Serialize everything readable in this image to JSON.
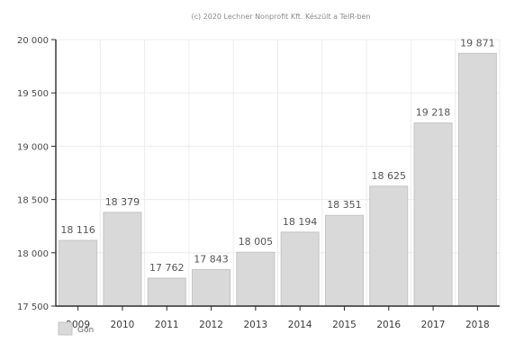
{
  "credit": "(c) 2020 Lechner Nonprofit Kft. Készült a TeIR-ben",
  "chart_data": {
    "type": "bar",
    "categories": [
      "2009",
      "2010",
      "2011",
      "2012",
      "2013",
      "2014",
      "2015",
      "2016",
      "2017",
      "2018"
    ],
    "series": [
      {
        "name": "Gön",
        "values": [
          18116,
          18379,
          17762,
          17843,
          18005,
          18194,
          18351,
          18625,
          19218,
          19871
        ],
        "labels": [
          "18 116",
          "18 379",
          "17 762",
          "17 843",
          "18 005",
          "18 194",
          "18 351",
          "18 625",
          "19 218",
          "19 871"
        ]
      }
    ],
    "ylim": [
      17500,
      20000
    ],
    "yticks": [
      17500,
      18000,
      18500,
      19000,
      19500,
      20000
    ],
    "ytick_labels": [
      "17 500",
      "18 000",
      "18 500",
      "19 000",
      "19 500",
      "20 000"
    ],
    "grid": true,
    "legend": "bottom-left",
    "title": "",
    "xlabel": "",
    "ylabel": "",
    "colors": {
      "bar_fill": "#d9d9d9",
      "bar_stroke": "#c4c4c4",
      "axis": "#2b2b2b",
      "grid": "#ececec"
    }
  }
}
